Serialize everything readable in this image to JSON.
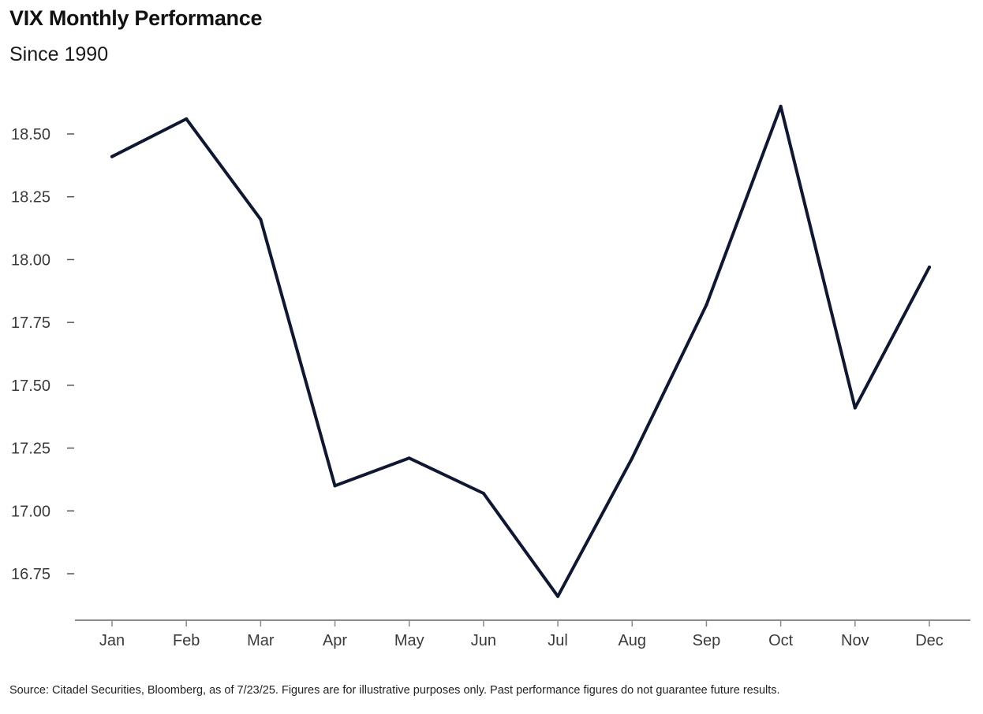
{
  "chart_data": {
    "type": "line",
    "title": "VIX Monthly Performance",
    "subtitle": "Since 1990",
    "categories": [
      "Jan",
      "Feb",
      "Mar",
      "Apr",
      "May",
      "Jun",
      "Jul",
      "Aug",
      "Sep",
      "Oct",
      "Nov",
      "Dec"
    ],
    "series": [
      {
        "values": [
          18.41,
          18.56,
          18.16,
          17.1,
          17.21,
          17.07,
          16.66,
          17.21,
          17.82,
          18.61,
          17.41,
          17.97
        ],
        "color": "#0f1733"
      }
    ],
    "yticks": [
      "18.50",
      "18.25",
      "18.00",
      "17.75",
      "17.50",
      "17.25",
      "17.00",
      "16.75"
    ],
    "ylim": [
      16.6,
      18.65
    ],
    "grid": false,
    "legend": "none",
    "xlabel": "",
    "ylabel": ""
  },
  "footnote": "Source: Citadel Securities, Bloomberg, as of 7/23/25. Figures are for illustrative purposes only. Past performance figures do not guarantee future results."
}
